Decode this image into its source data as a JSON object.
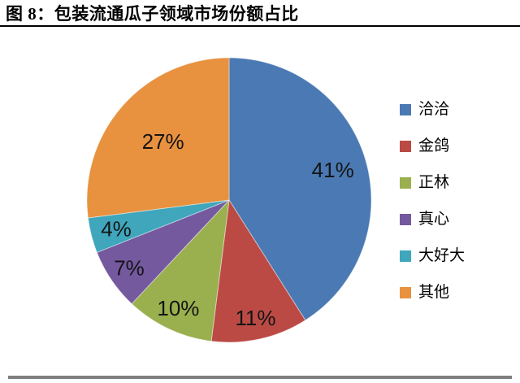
{
  "figure": {
    "title": "图 8：包装流通瓜子领域市场份额占比"
  },
  "chart_data": {
    "type": "pie",
    "title": "图 8：包装流通瓜子领域市场份额占比",
    "unit": "%",
    "legend_position": "right",
    "start_angle_deg": 0,
    "slices": [
      {
        "label": "洽洽",
        "value": 41,
        "display": "41%",
        "color": "#4A79B3",
        "label_r": 0.76
      },
      {
        "label": "金鸽",
        "value": 11,
        "display": "11%",
        "color": "#BB4A45",
        "label_r": 0.85
      },
      {
        "label": "正林",
        "value": 10,
        "display": "10%",
        "color": "#9AAF4E",
        "label_r": 0.84
      },
      {
        "label": "真心",
        "value": 7,
        "display": "7%",
        "color": "#75599F",
        "label_r": 0.85
      },
      {
        "label": "大好大",
        "value": 4,
        "display": "4%",
        "color": "#3FA6BC",
        "label_r": 0.82
      },
      {
        "label": "其他",
        "value": 27,
        "display": "27%",
        "color": "#E8913F",
        "label_r": 0.62
      }
    ]
  }
}
